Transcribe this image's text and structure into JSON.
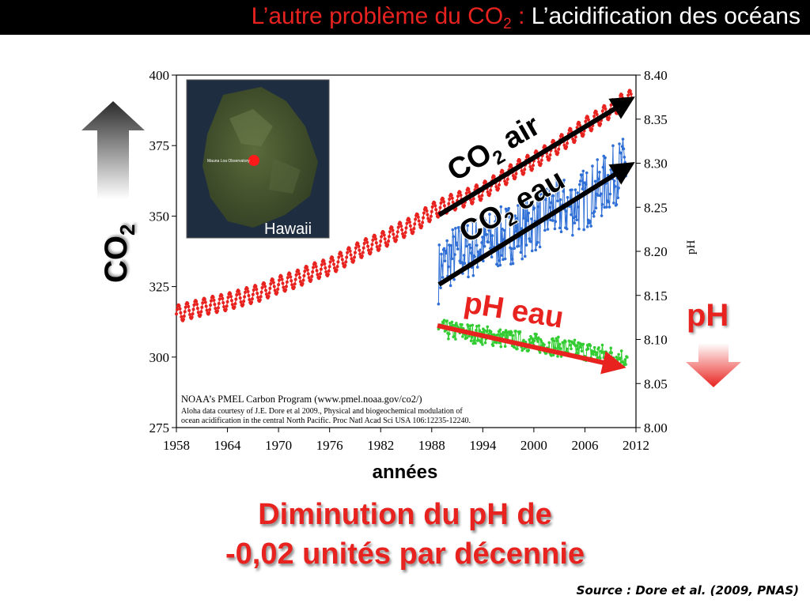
{
  "slide": {
    "title_red": "L’autre problème du CO",
    "title_sub": "2",
    "title_colon": " : ",
    "title_white": "L’acidification des océans",
    "conclusion_line1": "Diminution du pH de",
    "conclusion_line2": "-0,02 unités par décennie",
    "source": "Source : Dore et al. (2009, PNAS)"
  },
  "chart_labels": {
    "left_axis_main": "CO",
    "left_axis_sub": "2",
    "right_axis_label": "pH",
    "ph_side_label": "pH",
    "xlabel": "années",
    "inset_label": "Hawaii",
    "inset_marker_label": "Mauna Loa Observatory",
    "annot_co2_air_main": "CO",
    "annot_co2_air_sub": "2",
    "annot_co2_air_rest": " air",
    "annot_co2_eau_main": "CO",
    "annot_co2_eau_sub": "2",
    "annot_co2_eau_rest": " eau",
    "annot_ph_eau": "pH eau",
    "credit_line1": "NOAA’s PMEL Carbon Program (www.pmel.noaa.gov/co2/)",
    "credit_line2": "Aloha data courtesy of J.E. Dore et al 2009., Physical and biogeochemical modulation of",
    "credit_line3": "ocean acidification in the central North Pacific. Proc Natl Acad Sci USA 106:12235-12240."
  },
  "colors": {
    "co2_air": "#e8231f",
    "co2_sea": "#2f6fd6",
    "ph_sea": "#33cc33",
    "accent_red": "#e8231f",
    "trend_black": "#000000"
  },
  "chart_data": {
    "type": "line",
    "xlim": [
      1958,
      2012
    ],
    "x_ticks": [
      "1958",
      "1964",
      "1970",
      "1976",
      "1982",
      "1988",
      "1994",
      "2000",
      "2006",
      "2012"
    ],
    "y_left": {
      "lim": [
        275,
        400
      ],
      "ticks": [
        "275",
        "300",
        "325",
        "350",
        "375",
        "400"
      ]
    },
    "y_right": {
      "lim": [
        8.0,
        8.4
      ],
      "ticks": [
        "8.00",
        "8.05",
        "8.10",
        "8.15",
        "8.20",
        "8.25",
        "8.30",
        "8.35",
        "8.40"
      ]
    },
    "series": [
      {
        "key": "co2_air",
        "axis": "left",
        "annual_x": [
          1958,
          1960,
          1962,
          1964,
          1966,
          1968,
          1970,
          1972,
          1974,
          1976,
          1978,
          1980,
          1982,
          1984,
          1986,
          1988,
          1990,
          1992,
          1994,
          1996,
          1998,
          2000,
          2002,
          2004,
          2006,
          2008,
          2010,
          2011.5
        ],
        "annual_mean": [
          315.3,
          316.9,
          318.4,
          319.6,
          321.4,
          323.0,
          325.7,
          327.5,
          330.2,
          332.1,
          335.4,
          338.7,
          341.1,
          344.4,
          347.2,
          351.6,
          354.4,
          356.5,
          358.9,
          362.7,
          366.7,
          369.6,
          373.3,
          377.5,
          381.9,
          385.6,
          389.9,
          391.9
        ],
        "seasonal_amplitude": 3
      },
      {
        "key": "co2_sea",
        "axis": "left",
        "annual_x": [
          1988.8,
          1990,
          1992,
          1994,
          1996,
          1998,
          2000,
          2002,
          2004,
          2006,
          2008,
          2010,
          2011
        ],
        "annual_mean": [
          330,
          335,
          338,
          340,
          342,
          345,
          348,
          352,
          353,
          356,
          360,
          366,
          368
        ],
        "spread": 7
      },
      {
        "key": "ph_sea",
        "axis": "right",
        "annual_x": [
          1988.8,
          1990,
          1992,
          1994,
          1996,
          1998,
          2000,
          2002,
          2004,
          2006,
          2008,
          2010,
          2011
        ],
        "annual_mean": [
          8.112,
          8.11,
          8.108,
          8.105,
          8.102,
          8.099,
          8.096,
          8.093,
          8.09,
          8.087,
          8.084,
          8.08,
          8.078
        ],
        "spread": 0.008
      }
    ]
  }
}
